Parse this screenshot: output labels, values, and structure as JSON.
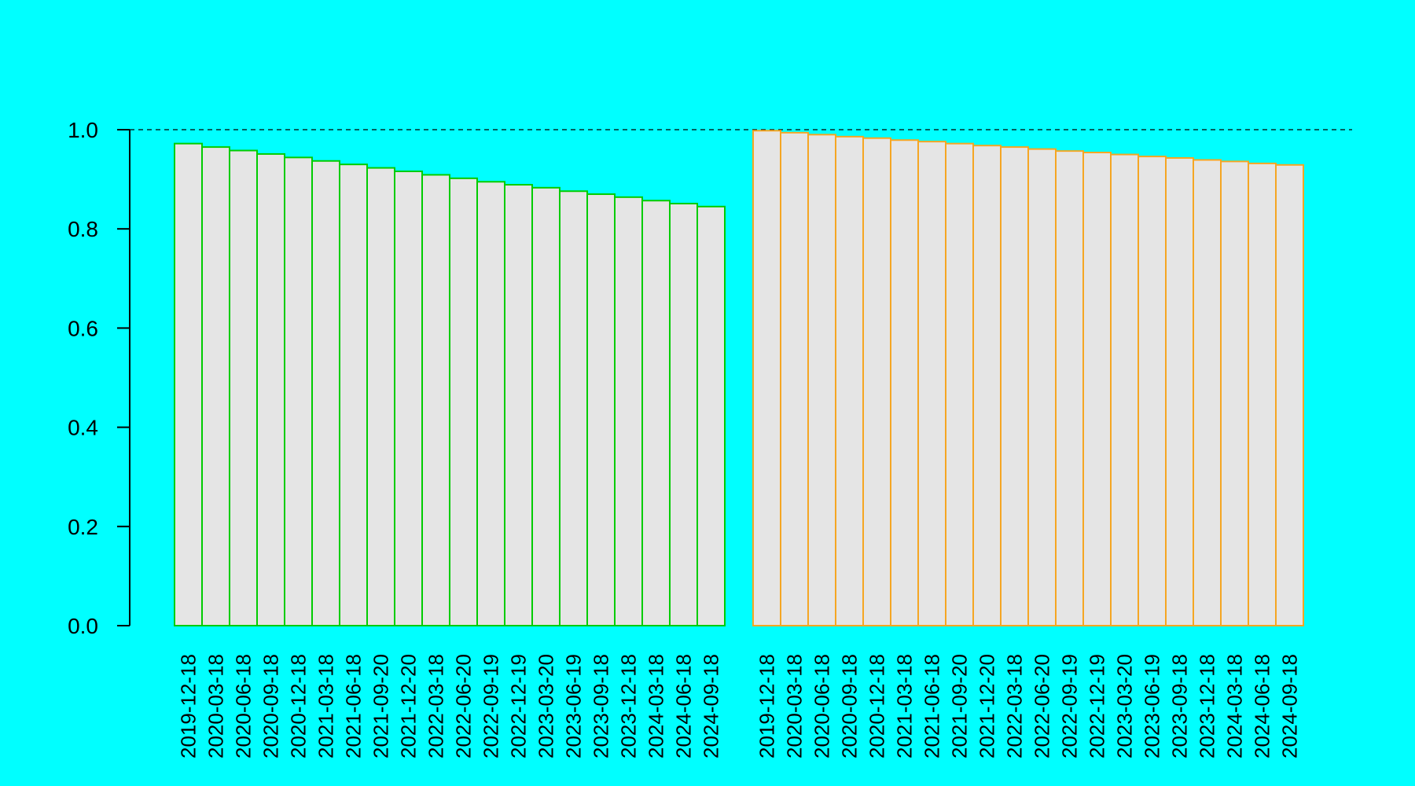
{
  "chart_data": {
    "type": "bar",
    "title": "",
    "xlabel": "",
    "ylabel": "",
    "ylim": [
      0,
      1
    ],
    "y_ticks": [
      "0.0",
      "0.2",
      "0.4",
      "0.6",
      "0.8",
      "1.0"
    ],
    "y_tick_values": [
      0,
      0.2,
      0.4,
      0.6,
      0.8,
      1.0
    ],
    "reference_line": 1.0,
    "grid": false,
    "legend": "none",
    "categories": [
      "2019-12-18",
      "2020-03-18",
      "2020-06-18",
      "2020-09-18",
      "2020-12-18",
      "2021-03-18",
      "2021-06-18",
      "2021-09-20",
      "2021-12-20",
      "2022-03-18",
      "2022-06-20",
      "2022-09-19",
      "2022-12-19",
      "2023-03-20",
      "2023-06-19",
      "2023-09-18",
      "2023-12-18",
      "2024-03-18",
      "2024-06-18",
      "2024-09-18"
    ],
    "series": [
      {
        "values": [
          0.972,
          0.965,
          0.958,
          0.951,
          0.944,
          0.937,
          0.93,
          0.923,
          0.916,
          0.909,
          0.902,
          0.895,
          0.889,
          0.883,
          0.876,
          0.87,
          0.864,
          0.857,
          0.851,
          0.845
        ],
        "color": "#00CC00",
        "fill": "#E5E5E5"
      },
      {
        "values": [
          0.998,
          0.994,
          0.99,
          0.986,
          0.983,
          0.979,
          0.976,
          0.972,
          0.968,
          0.965,
          0.961,
          0.957,
          0.954,
          0.95,
          0.946,
          0.943,
          0.939,
          0.936,
          0.932,
          0.929
        ],
        "color": "#F5A623",
        "fill": "#E5E5E5"
      }
    ]
  }
}
